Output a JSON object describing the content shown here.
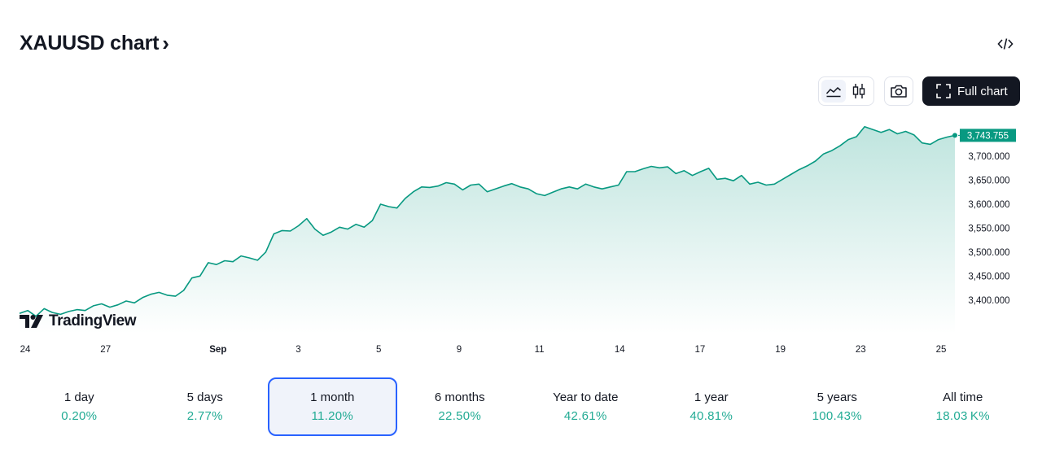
{
  "header": {
    "title": "XAUUSD chart",
    "chevron": "›"
  },
  "toolbar": {
    "full_chart_label": "Full chart"
  },
  "brand": {
    "logo_text": "TradingView"
  },
  "icons": {
    "embed": "embed-code-icon",
    "line_style": "line-chart-icon",
    "candle_style": "candlestick-icon",
    "snapshot": "camera-icon",
    "fullscreen": "fullscreen-icon",
    "logo": "tradingview-logo-icon"
  },
  "colors": {
    "line": "#089981",
    "price_badge": "#089981",
    "accent_border": "#2962ff",
    "positive": "#22ab94"
  },
  "chart_data": {
    "type": "area",
    "symbol": "XAUUSD",
    "last_price_label": "3,743.755",
    "y_ticks": [
      "3,700.000",
      "3,650.000",
      "3,600.000",
      "3,550.000",
      "3,500.000",
      "3,450.000",
      "3,400.000"
    ],
    "y_tick_values": [
      3700,
      3650,
      3600,
      3550,
      3500,
      3450,
      3400
    ],
    "ylim": [
      3330,
      3775
    ],
    "x_ticks": [
      "24",
      "27",
      "Sep",
      "3",
      "5",
      "9",
      "11",
      "14",
      "17",
      "19",
      "23",
      "25"
    ],
    "x_tick_index": [
      0,
      10,
      24,
      34,
      44,
      54,
      64,
      74,
      84,
      94,
      104,
      114
    ],
    "values": [
      3372,
      3378,
      3366,
      3382,
      3374,
      3370,
      3376,
      3380,
      3378,
      3388,
      3392,
      3385,
      3390,
      3398,
      3394,
      3405,
      3412,
      3416,
      3410,
      3408,
      3420,
      3446,
      3450,
      3478,
      3474,
      3482,
      3480,
      3492,
      3488,
      3483,
      3500,
      3538,
      3545,
      3544,
      3555,
      3570,
      3548,
      3535,
      3542,
      3552,
      3548,
      3558,
      3552,
      3566,
      3600,
      3595,
      3592,
      3612,
      3626,
      3636,
      3635,
      3638,
      3645,
      3642,
      3630,
      3640,
      3642,
      3626,
      3632,
      3638,
      3643,
      3636,
      3632,
      3622,
      3618,
      3625,
      3632,
      3636,
      3632,
      3642,
      3636,
      3632,
      3636,
      3640,
      3668,
      3668,
      3674,
      3679,
      3676,
      3678,
      3664,
      3670,
      3660,
      3668,
      3675,
      3652,
      3654,
      3649,
      3660,
      3642,
      3646,
      3640,
      3642,
      3652,
      3662,
      3672,
      3680,
      3690,
      3705,
      3712,
      3722,
      3735,
      3741,
      3762,
      3756,
      3750,
      3756,
      3747,
      3752,
      3745,
      3728,
      3725,
      3735,
      3740,
      3743.755
    ],
    "grid": false,
    "legend": "none"
  },
  "periods": [
    {
      "label": "1 day",
      "change": "0.20%",
      "active": false
    },
    {
      "label": "5 days",
      "change": "2.77%",
      "active": false
    },
    {
      "label": "1 month",
      "change": "11.20%",
      "active": true
    },
    {
      "label": "6 months",
      "change": "22.50%",
      "active": false
    },
    {
      "label": "Year to date",
      "change": "42.61%",
      "active": false
    },
    {
      "label": "1 year",
      "change": "40.81%",
      "active": false
    },
    {
      "label": "5 years",
      "change": "100.43%",
      "active": false
    },
    {
      "label": "All time",
      "change": "18.03 K%",
      "active": false
    }
  ]
}
